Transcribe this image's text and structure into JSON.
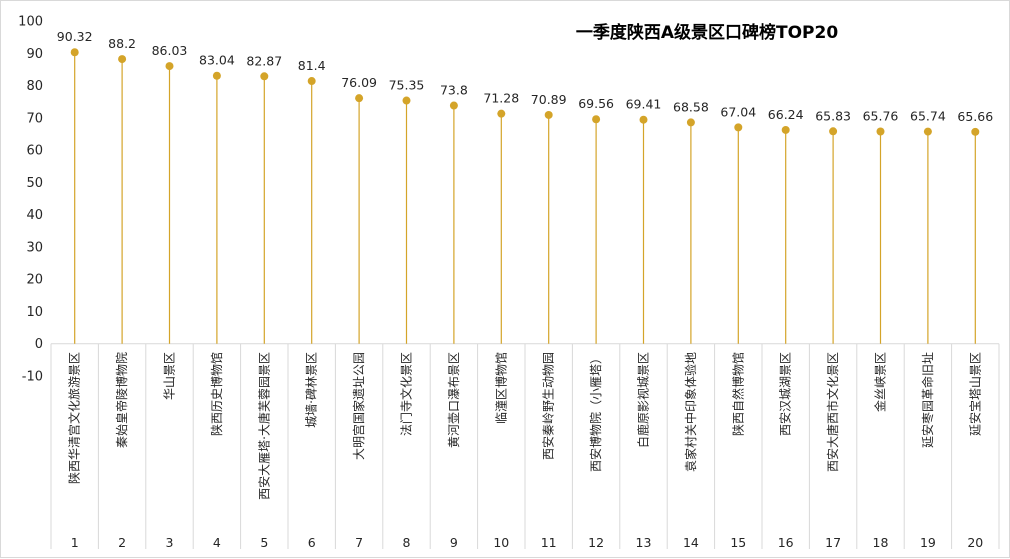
{
  "chart_data": {
    "type": "lollipop",
    "title": "一季度陕西A级景区口碑榜TOP20",
    "ylim": [
      -10,
      100
    ],
    "yticks": [
      -10,
      0,
      10,
      20,
      30,
      40,
      50,
      60,
      70,
      80,
      90,
      100
    ],
    "grid": false,
    "color": "#D4A429",
    "ranks": [
      "1",
      "2",
      "3",
      "4",
      "5",
      "6",
      "7",
      "8",
      "9",
      "10",
      "11",
      "12",
      "13",
      "14",
      "15",
      "16",
      "17",
      "18",
      "19",
      "20"
    ],
    "categories": [
      "陕西华清宫文化旅游景区",
      "秦始皇帝陵博物院",
      "华山景区",
      "陕西历史博物馆",
      "西安大雁塔·大唐芙蓉园景区",
      "城墙·碑林景区",
      "大明宫国家遗址公园",
      "法门寺文化景区",
      "黄河壶口瀑布景区",
      "临潼区博物馆",
      "西安秦岭野生动物园",
      "西安博物院（小雁塔）",
      "白鹿原影视城景区",
      "袁家村关中印象体验地",
      "陕西自然博物馆",
      "西安汉城湖景区",
      "西安大唐西市文化景区",
      "金丝峡景区",
      "延安枣园革命旧址",
      "延安宝塔山景区"
    ],
    "values": [
      90.32,
      88.2,
      86.03,
      83.04,
      82.87,
      81.4,
      76.09,
      75.35,
      73.8,
      71.28,
      70.89,
      69.56,
      69.41,
      68.58,
      67.04,
      66.24,
      65.83,
      65.76,
      65.74,
      65.66
    ],
    "labels": [
      "90.32",
      "88.2",
      "86.03",
      "83.04",
      "82.87",
      "81.4",
      "76.09",
      "75.35",
      "73.8",
      "71.28",
      "70.89",
      "69.56",
      "69.41",
      "68.58",
      "67.04",
      "66.24",
      "65.83",
      "65.76",
      "65.74",
      "65.66"
    ]
  }
}
